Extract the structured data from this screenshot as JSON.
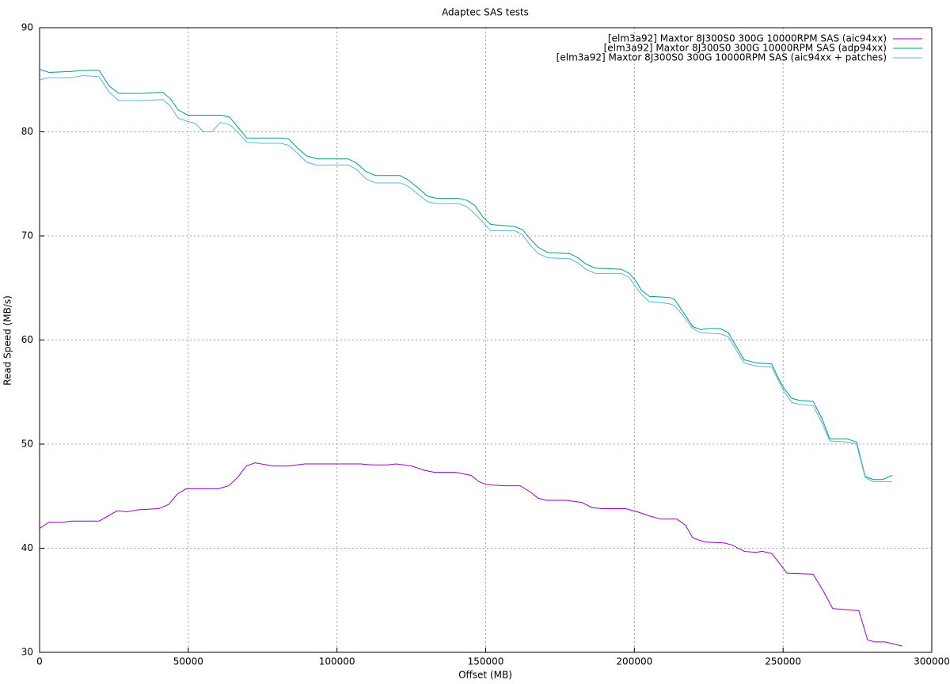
{
  "chart_data": {
    "type": "line",
    "title": "Adaptec SAS tests",
    "x_label": "Offset (MB)",
    "y_label": "Read Speed (MB/s)",
    "xlim": [
      0,
      300000
    ],
    "xticks": [
      0,
      50000,
      100000,
      150000,
      200000,
      250000,
      300000
    ],
    "ylim": [
      30,
      90
    ],
    "yticks": [
      30,
      40,
      50,
      60,
      70,
      80,
      90
    ],
    "grid": true,
    "legend": "top-right",
    "series": [
      {
        "name": "[elm3a92] Maxtor 8J300S0 300G 10000RPM SAS (aic94xx)",
        "color": "#9400d3",
        "x": [
          0,
          3200,
          8000,
          10600,
          13300,
          20000,
          26100,
          29300,
          33300,
          40000,
          43400,
          46300,
          49200,
          60000,
          63600,
          66600,
          69500,
          72400,
          78500,
          83800,
          89200,
          107800,
          111800,
          117100,
          119800,
          125100,
          129100,
          132600,
          139700,
          145100,
          147700,
          150400,
          156300,
          161600,
          165000,
          167700,
          170400,
          177000,
          182300,
          185800,
          189000,
          197000,
          201000,
          205000,
          209000,
          214300,
          217200,
          219600,
          223600,
          230300,
          232900,
          236900,
          240900,
          243000,
          246200,
          248900,
          251300,
          260100,
          263500,
          266700,
          271500,
          275500,
          278400,
          280800,
          284300,
          290100
        ],
        "values": [
          41.9,
          42.5,
          42.5,
          42.6,
          42.6,
          42.6,
          43.6,
          43.5,
          43.7,
          43.8,
          44.2,
          45.2,
          45.7,
          45.7,
          46.0,
          46.8,
          47.9,
          48.2,
          47.9,
          47.9,
          48.1,
          48.1,
          48.0,
          48.0,
          48.1,
          47.9,
          47.5,
          47.3,
          47.3,
          47.0,
          46.4,
          46.1,
          46.0,
          46.0,
          45.4,
          44.8,
          44.6,
          44.6,
          44.4,
          43.9,
          43.8,
          43.8,
          43.5,
          43.1,
          42.8,
          42.8,
          42.2,
          41.0,
          40.6,
          40.5,
          40.3,
          39.7,
          39.6,
          39.7,
          39.5,
          38.5,
          37.6,
          37.5,
          35.9,
          34.2,
          34.1,
          34.0,
          31.2,
          31.0,
          31.0,
          30.6
        ]
      },
      {
        "name": "[elm3a92] Maxtor 8J300S0 300G 10000RPM SAS (adp94xx)",
        "color": "#009e73",
        "x": [
          0,
          3200,
          10600,
          14600,
          20000,
          23400,
          26600,
          34600,
          41300,
          43900,
          46600,
          49800,
          61200,
          63900,
          66500,
          69700,
          74500,
          81200,
          83800,
          86500,
          89700,
          93200,
          103800,
          106500,
          109700,
          112900,
          121200,
          123800,
          127300,
          130500,
          133700,
          141100,
          143800,
          146400,
          149100,
          151700,
          159700,
          162400,
          165000,
          167700,
          170900,
          178300,
          181000,
          183700,
          186900,
          195600,
          198300,
          200400,
          202300,
          205000,
          211600,
          213500,
          216100,
          219600,
          222300,
          224900,
          228900,
          231600,
          234200,
          236900,
          240900,
          246200,
          248100,
          250200,
          252900,
          255500,
          260100,
          263000,
          265700,
          271500,
          274700,
          277600,
          280300,
          283500,
          286700
        ],
        "values": [
          86.0,
          85.7,
          85.8,
          85.9,
          85.9,
          84.4,
          83.7,
          83.7,
          83.8,
          83.2,
          82.1,
          81.6,
          81.6,
          81.4,
          80.5,
          79.4,
          79.4,
          79.4,
          79.3,
          78.5,
          77.7,
          77.4,
          77.4,
          77.0,
          76.2,
          75.8,
          75.8,
          75.4,
          74.6,
          73.8,
          73.6,
          73.6,
          73.4,
          72.9,
          71.8,
          71.1,
          70.9,
          70.6,
          69.7,
          68.9,
          68.4,
          68.3,
          67.9,
          67.3,
          66.9,
          66.8,
          66.4,
          65.7,
          64.8,
          64.2,
          64.1,
          63.9,
          62.8,
          61.3,
          61.0,
          61.1,
          61.1,
          60.7,
          59.4,
          58.1,
          57.8,
          57.7,
          56.5,
          55.4,
          54.4,
          54.2,
          54.1,
          52.5,
          50.5,
          50.5,
          50.2,
          46.9,
          46.6,
          46.6,
          47.0
        ]
      },
      {
        "name": "[elm3a92] Maxtor 8J300S0 300G 10000RPM SAS (aic94xx + patches)",
        "color": "#56b4e9",
        "x": [
          0,
          3200,
          10600,
          14600,
          20000,
          23400,
          26600,
          34600,
          41300,
          43900,
          46600,
          49800,
          52400,
          55100,
          58000,
          60700,
          63900,
          66500,
          69700,
          74500,
          81200,
          83800,
          86500,
          89700,
          93200,
          103800,
          106500,
          109700,
          112900,
          121200,
          123800,
          127300,
          130400,
          133600,
          141100,
          143700,
          146400,
          149100,
          151700,
          159700,
          162400,
          165000,
          167700,
          170900,
          178400,
          181000,
          183700,
          186900,
          195700,
          198300,
          200400,
          202300,
          205000,
          211600,
          213500,
          216200,
          219600,
          222300,
          228900,
          231600,
          234300,
          236900,
          240900,
          246200,
          248100,
          250200,
          252900,
          255600,
          260100,
          263000,
          265700,
          271500,
          274700,
          277600,
          280300,
          286700
        ],
        "values": [
          85.0,
          85.2,
          85.2,
          85.4,
          85.3,
          83.8,
          83.0,
          83.0,
          83.1,
          82.5,
          81.3,
          81.0,
          80.8,
          80.0,
          80.0,
          80.9,
          80.7,
          80.0,
          79.0,
          78.9,
          78.9,
          78.7,
          78.0,
          77.1,
          76.8,
          76.8,
          76.4,
          75.5,
          75.1,
          75.1,
          74.8,
          74.0,
          73.3,
          73.1,
          73.1,
          72.8,
          72.1,
          71.3,
          70.5,
          70.5,
          70.1,
          69.1,
          68.3,
          67.9,
          67.8,
          67.4,
          66.8,
          66.4,
          66.4,
          66.0,
          65.1,
          64.4,
          63.7,
          63.5,
          63.3,
          62.4,
          61.1,
          60.7,
          60.6,
          60.3,
          59.0,
          57.8,
          57.5,
          57.4,
          56.3,
          55.1,
          54.0,
          53.8,
          53.7,
          52.1,
          50.3,
          50.2,
          50.0,
          46.8,
          46.4,
          46.4
        ]
      }
    ]
  }
}
